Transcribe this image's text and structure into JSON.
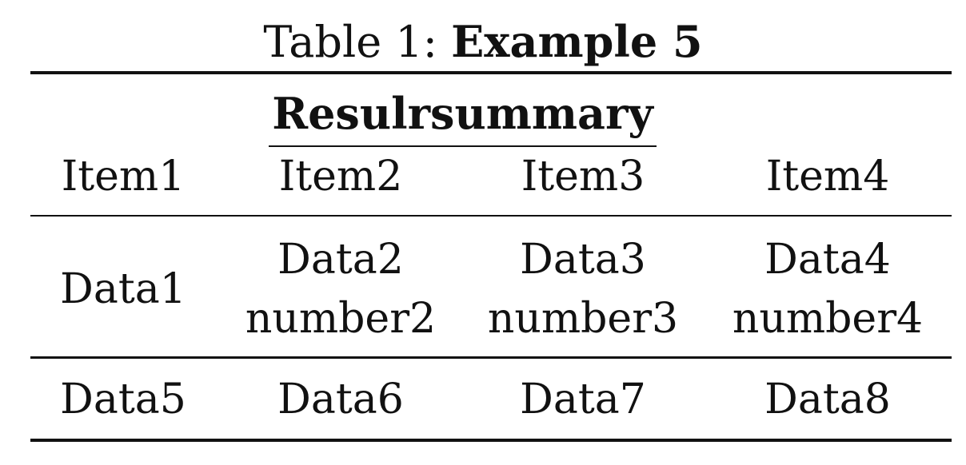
{
  "caption": {
    "prefix": "Table 1:",
    "title": "Example 5"
  },
  "table": {
    "group_header": "Resulrsummary",
    "columns": [
      "Item1",
      "Item2",
      "Item3",
      "Item4"
    ],
    "rows": [
      [
        [
          "Data1"
        ],
        [
          "Data2",
          "number2"
        ],
        [
          "Data3",
          "number3"
        ],
        [
          "Data4",
          "number4"
        ]
      ],
      [
        [
          "Data5"
        ],
        [
          "Data6"
        ],
        [
          "Data7"
        ],
        [
          "Data8"
        ]
      ]
    ]
  }
}
